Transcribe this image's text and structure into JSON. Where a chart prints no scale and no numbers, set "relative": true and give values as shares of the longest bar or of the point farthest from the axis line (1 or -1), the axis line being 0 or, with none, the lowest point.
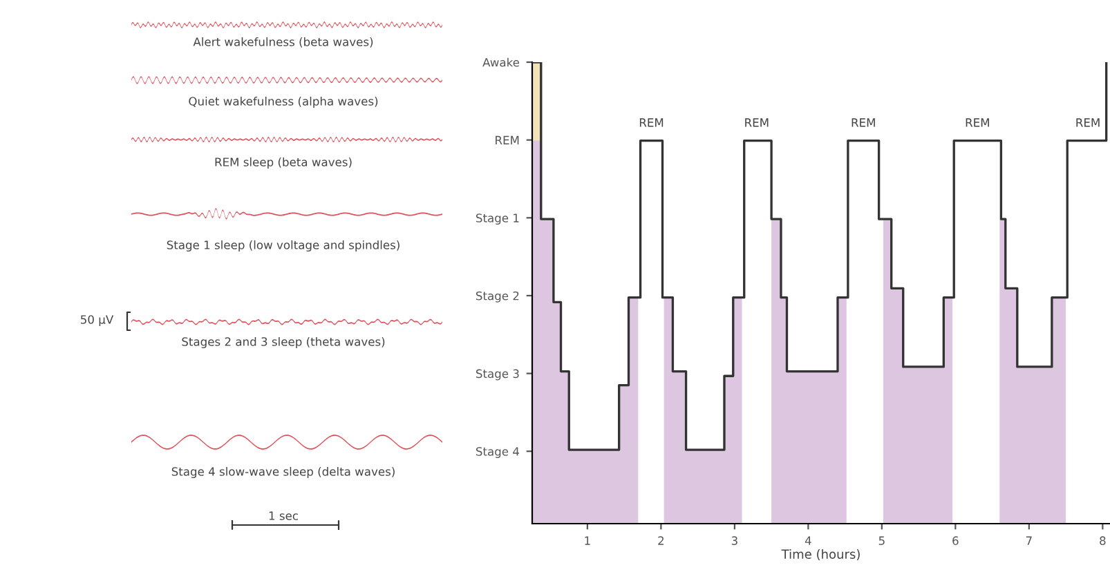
{
  "chart_data": {
    "type": "step",
    "xlabel": "Time (hours)",
    "relative": true,
    "xlim": [
      0.25,
      8.1
    ],
    "xticks": [
      1,
      2,
      3,
      4,
      5,
      6,
      7,
      8
    ],
    "grid": false,
    "series": [
      {
        "type": "area",
        "color": "#dcc6e0",
        "x": [
          0.25,
          0.37,
          0.54,
          0.64,
          0.75,
          1.43,
          1.56,
          1.69
        ],
        "values": [
          0.83,
          0.66,
          0.48,
          0.33,
          0.16,
          0.3,
          0.49,
          0.49
        ]
      },
      {
        "type": "area",
        "color": "#dcc6e0",
        "x": [
          2.04,
          2.16,
          2.34,
          2.86,
          2.98,
          3.1
        ],
        "values": [
          0.49,
          0.33,
          0.16,
          0.32,
          0.49,
          0.49
        ]
      },
      {
        "type": "area",
        "color": "#dcc6e0",
        "x": [
          3.5,
          3.63,
          3.71,
          4.4,
          4.52
        ],
        "values": [
          0.66,
          0.49,
          0.33,
          0.49,
          0.49
        ]
      },
      {
        "type": "area",
        "color": "#dcc6e0",
        "x": [
          5.02,
          5.13,
          5.29,
          5.84,
          5.96
        ],
        "values": [
          0.66,
          0.51,
          0.34,
          0.49,
          0.49
        ]
      },
      {
        "type": "area",
        "color": "#dcc6e0",
        "x": [
          6.6,
          6.68,
          6.84,
          7.31,
          7.5
        ],
        "values": [
          0.66,
          0.51,
          0.34,
          0.49,
          0.49
        ]
      },
      {
        "color": "#333333",
        "x": [
          0.25,
          0.37,
          0.54,
          0.64,
          0.75,
          1.43,
          1.56,
          1.72,
          2.02,
          2.16,
          2.34,
          2.86,
          2.98,
          3.13,
          3.5,
          3.63,
          3.71,
          4.4,
          4.54,
          4.96,
          5.13,
          5.29,
          5.84,
          5.98,
          6.62,
          6.68,
          6.84,
          7.31,
          7.52,
          8.05
        ],
        "values": [
          1,
          0.66,
          0.48,
          0.33,
          0.16,
          0.3,
          0.49,
          0.83,
          0.49,
          0.33,
          0.16,
          0.32,
          0.49,
          0.83,
          0.66,
          0.49,
          0.33,
          0.49,
          0.83,
          0.66,
          0.51,
          0.34,
          0.49,
          0.83,
          0.66,
          0.51,
          0.34,
          0.49,
          0.83,
          1
        ]
      }
    ],
    "bands": [
      {
        "axis": "x",
        "from": 0.25,
        "to": 0.37,
        "color": "#f3e2b8"
      }
    ],
    "annotations": [
      "Awake",
      "REM",
      "Stage 1",
      "Stage 2",
      "Stage 3",
      "Stage 4",
      {
        "text": "REM",
        "x": 1.87,
        "y": 0.83
      },
      {
        "text": "REM",
        "x": 3.3,
        "y": 0.83
      },
      {
        "text": "REM",
        "x": 4.75,
        "y": 0.83
      },
      {
        "text": "REM",
        "x": 6.3,
        "y": 0.83
      },
      {
        "text": "REM",
        "x": 7.8,
        "y": 0.83
      },
      "Alert wakefulness (beta waves)",
      "Quiet wakefulness (alpha waves)",
      "REM sleep (beta waves)",
      "Stage 1 sleep (low voltage and spindles)",
      "Stages 2 and 3 sleep (theta waves)",
      "Stage 4 slow-wave sleep (delta waves)",
      "50 µV",
      "1 sec"
    ]
  }
}
